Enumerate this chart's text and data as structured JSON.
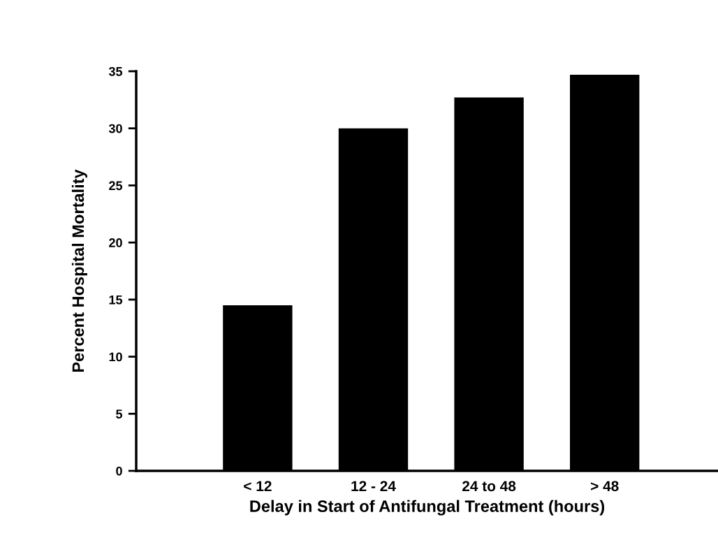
{
  "chart_data": {
    "type": "bar",
    "categories": [
      "< 12",
      "12 - 24",
      "24 to 48",
      "> 48"
    ],
    "values": [
      14.5,
      30.0,
      32.7,
      34.7
    ],
    "color": "#000000",
    "xlabel": "Delay in Start of Antifungal Treatment (hours)",
    "ylabel": "Percent Hospital Mortality",
    "ylim": [
      0,
      35
    ],
    "yticks": [
      0,
      5,
      10,
      15,
      20,
      25,
      30,
      35
    ],
    "grid": false,
    "legend": false
  }
}
